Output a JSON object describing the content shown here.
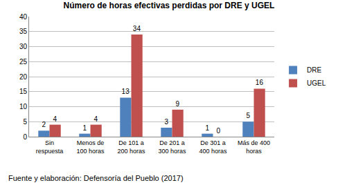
{
  "chart_data": {
    "type": "bar",
    "title": "Número de horas efectivas perdidas por DRE y UGEL",
    "categories": [
      "Sin\nrespuesta",
      "Menos de\n100 horas",
      "De 101 a\n200 horas",
      "De 201 a\n300 horas",
      "De 301 a\n400 horas",
      "Más de 400\nhoras"
    ],
    "series": [
      {
        "name": "DRE",
        "color": "#4f81bd",
        "values": [
          2,
          1,
          13,
          3,
          1,
          5
        ]
      },
      {
        "name": "UGEL",
        "color": "#c0504d",
        "values": [
          4,
          4,
          34,
          9,
          0,
          16
        ]
      }
    ],
    "ylim": [
      0,
      40
    ],
    "yticks": [
      0,
      5,
      10,
      15,
      20,
      25,
      30,
      35,
      40
    ],
    "grid": true,
    "legend": "right",
    "data_labels": true,
    "annotations": [
      "Fuente y elaboración: Defensoría del Pueblo (2017)"
    ]
  }
}
